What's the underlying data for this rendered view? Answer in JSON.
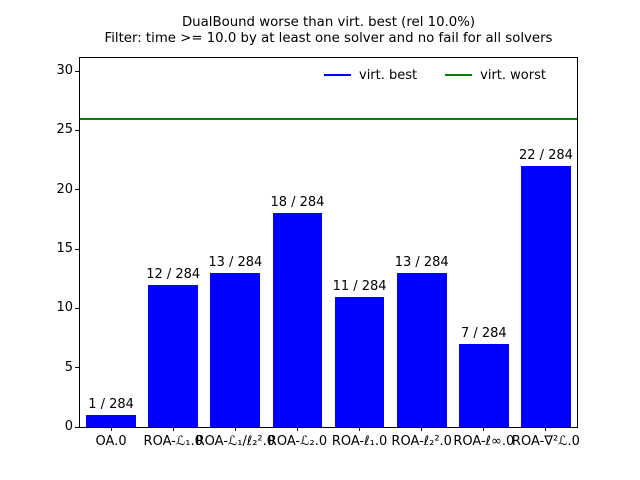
{
  "figure": {
    "title_line1": "DualBound worse than virt. best (rel 10.0%)",
    "title_line2": "Filter: time >= 10.0 by at least one solver and no fail for all solvers",
    "background": "#ffffff",
    "axis_color": "#000000"
  },
  "legend": {
    "entries": [
      {
        "label": "virt. best",
        "color": "#0000ff"
      },
      {
        "label": "virt. worst",
        "color": "#008000"
      }
    ],
    "frame": false,
    "position": "upper right"
  },
  "chart_data": {
    "type": "bar",
    "title": "DualBound worse than virt. best (rel 10.0%)",
    "subtitle": "Filter: time >= 10.0 by at least one solver and no fail for all solvers",
    "categories": [
      "OA.0",
      "ROA-ℒ₁.0",
      "ROA-ℒ₁/ℓ₂².0",
      "ROA-ℒ₂.0",
      "ROA-ℓ₁.0",
      "ROA-ℓ₂².0",
      "ROA-ℓ∞.0",
      "ROA-∇²ℒ.0"
    ],
    "values": [
      1,
      12,
      13,
      18,
      11,
      13,
      7,
      22
    ],
    "bar_labels": [
      "1 / 284",
      "12 / 284",
      "13 / 284",
      "18 / 284",
      "11 / 284",
      "13 / 284",
      "7 / 284",
      "22 / 284"
    ],
    "total_instances": 284,
    "bar_color": "#0000ff",
    "bar_width_fraction": 0.8,
    "hlines": [
      {
        "name": "virt. worst",
        "value": 26,
        "color": "#008000"
      }
    ],
    "legend_entries": [
      "virt. best",
      "virt. worst"
    ],
    "legend_position": "upper right",
    "xlabel": "",
    "ylabel": "",
    "yticks": [
      0,
      5,
      10,
      15,
      20,
      25,
      30
    ],
    "ylim": [
      0,
      31.1
    ],
    "grid": false
  }
}
